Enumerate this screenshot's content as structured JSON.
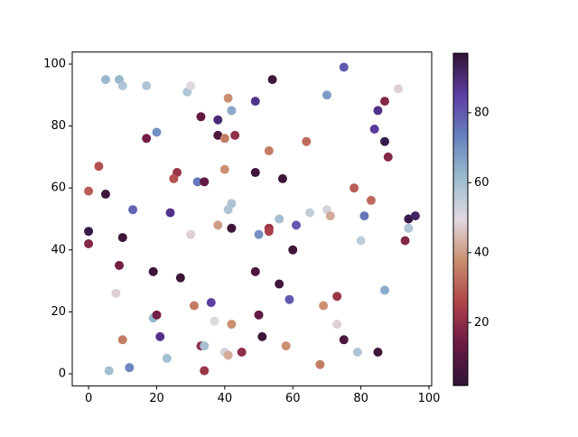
{
  "chart_data": {
    "type": "scatter",
    "x": [
      5,
      9,
      10,
      17,
      20,
      29,
      30,
      41,
      42,
      54,
      49,
      70,
      75,
      91,
      87,
      85,
      84,
      87,
      88,
      33,
      38,
      38,
      40,
      43,
      17,
      64,
      53,
      3,
      26,
      25,
      40,
      49,
      57,
      0,
      5,
      32,
      34,
      78,
      83,
      42,
      41,
      13,
      24,
      65,
      70,
      71,
      81,
      94,
      96,
      94,
      0,
      0,
      10,
      30,
      38,
      42,
      50,
      53,
      53,
      56,
      61,
      80,
      93,
      60,
      9,
      19,
      27,
      49,
      56,
      87,
      8,
      36,
      31,
      59,
      69,
      73,
      19,
      20,
      50,
      37,
      42,
      73,
      21,
      51,
      75,
      10,
      33,
      34,
      40,
      41,
      45,
      58,
      79,
      85,
      23,
      12,
      6,
      34,
      68
    ],
    "values": [
      95,
      95,
      93,
      93,
      78,
      91,
      93,
      89,
      85,
      95,
      88,
      90,
      99,
      92,
      88,
      85,
      79,
      75,
      70,
      83,
      82,
      77,
      76,
      77,
      76,
      75,
      72,
      67,
      65,
      63,
      66,
      65,
      63,
      59,
      58,
      62,
      62,
      60,
      56,
      55,
      53,
      53,
      52,
      52,
      53,
      51,
      51,
      50,
      51,
      47,
      46,
      42,
      44,
      45,
      48,
      47,
      45,
      47,
      46,
      50,
      48,
      43,
      43,
      40,
      35,
      33,
      31,
      33,
      29,
      27,
      26,
      23,
      22,
      24,
      22,
      25,
      18,
      19,
      19,
      17,
      16,
      16,
      12,
      12,
      11,
      11,
      9,
      9,
      7,
      6,
      7,
      9,
      7,
      7,
      5,
      2,
      1,
      1,
      3
    ],
    "color_values": [
      62,
      62,
      58,
      58,
      70,
      58,
      50,
      38,
      65,
      5,
      88,
      68,
      80,
      48,
      18,
      88,
      86,
      95,
      18,
      12,
      90,
      8,
      35,
      20,
      15,
      32,
      35,
      28,
      22,
      28,
      38,
      5,
      5,
      30,
      5,
      75,
      12,
      30,
      32,
      58,
      58,
      78,
      88,
      55,
      52,
      42,
      75,
      95,
      92,
      58,
      95,
      18,
      5,
      48,
      40,
      5,
      70,
      22,
      25,
      60,
      80,
      55,
      18,
      5,
      15,
      5,
      5,
      8,
      5,
      65,
      48,
      85,
      35,
      80,
      38,
      22,
      62,
      15,
      12,
      50,
      38,
      48,
      88,
      5,
      8,
      35,
      20,
      60,
      52,
      42,
      20,
      38,
      58,
      5,
      60,
      72,
      60,
      22,
      35
    ],
    "xlim": [
      -4.8,
      100.8
    ],
    "ylim": [
      -3.9,
      103.9
    ],
    "xticks": [
      0,
      20,
      40,
      60,
      80,
      100
    ],
    "yticks": [
      0,
      20,
      40,
      60,
      80,
      100
    ],
    "clim": [
      2,
      97
    ],
    "cticks": [
      20,
      40,
      60,
      80
    ],
    "colormap": [
      "#2f1436",
      "#6b1a45",
      "#b0434a",
      "#c98e6d",
      "#e2d9e2",
      "#9bbcce",
      "#6681be",
      "#5d3da3",
      "#2f1436"
    ]
  }
}
